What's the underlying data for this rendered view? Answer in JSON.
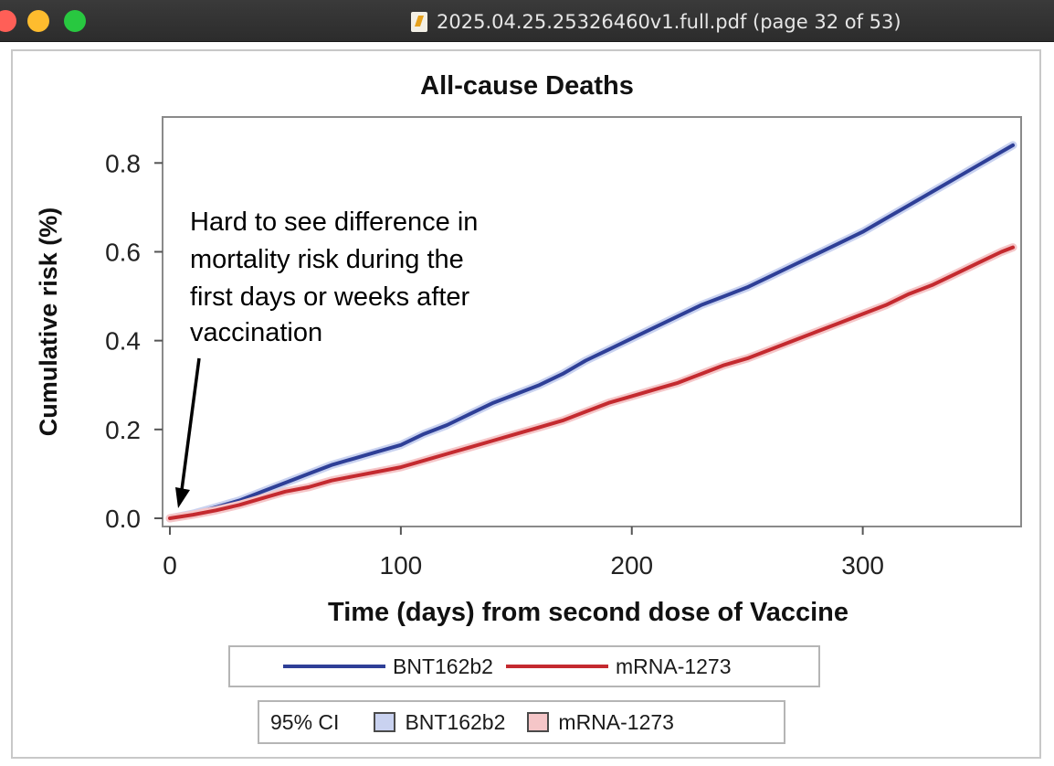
{
  "window": {
    "title": "2025.04.25.25326460v1.full.pdf (page 32 of 53)",
    "icon": "pdf-document-icon",
    "buttons": {
      "close_color": "#ff5f57",
      "minimize_color": "#febc2e",
      "maximize_color": "#28c840"
    }
  },
  "annotation": {
    "lines": [
      "Hard to see difference in",
      "mortality risk during the",
      "first days or weeks after",
      "vaccination"
    ]
  },
  "legend": {
    "series_labels": [
      "BNT162b2",
      "mRNA-1273"
    ],
    "ci_title": "95% CI",
    "ci_labels": [
      "BNT162b2",
      "mRNA-1273"
    ]
  },
  "chart_data": {
    "type": "line",
    "title": "All-cause Deaths",
    "xlabel": "Time (days) from second dose of Vaccine",
    "ylabel": "Cumulative risk (%)",
    "xlim": [
      0,
      365
    ],
    "ylim": [
      0,
      0.85
    ],
    "x_ticks": [
      0,
      100,
      200,
      300
    ],
    "x_tick_labels": [
      "0",
      "100",
      "200",
      "300"
    ],
    "y_ticks": [
      0.0,
      0.2,
      0.4,
      0.6,
      0.8
    ],
    "y_tick_labels": [
      "0.0",
      "0.2",
      "0.4",
      "0.6",
      "0.8"
    ],
    "grid": false,
    "legend_position": "bottom",
    "series": [
      {
        "name": "BNT162b2",
        "color": "#2e3f97",
        "ci_color": "#c9d2f0",
        "x": [
          0,
          10,
          20,
          30,
          40,
          50,
          60,
          70,
          80,
          90,
          100,
          110,
          120,
          130,
          140,
          150,
          160,
          170,
          180,
          190,
          200,
          210,
          220,
          230,
          240,
          250,
          260,
          270,
          280,
          290,
          300,
          310,
          320,
          330,
          340,
          350,
          360,
          365
        ],
        "y": [
          0.0,
          0.01,
          0.025,
          0.04,
          0.06,
          0.08,
          0.1,
          0.12,
          0.135,
          0.15,
          0.165,
          0.19,
          0.21,
          0.235,
          0.26,
          0.28,
          0.3,
          0.325,
          0.355,
          0.38,
          0.405,
          0.43,
          0.455,
          0.48,
          0.5,
          0.52,
          0.545,
          0.57,
          0.595,
          0.62,
          0.645,
          0.675,
          0.705,
          0.735,
          0.765,
          0.795,
          0.825,
          0.84
        ]
      },
      {
        "name": "mRNA-1273",
        "color": "#c42a2f",
        "ci_color": "#f5c6c8",
        "x": [
          0,
          10,
          20,
          30,
          40,
          50,
          60,
          70,
          80,
          90,
          100,
          110,
          120,
          130,
          140,
          150,
          160,
          170,
          180,
          190,
          200,
          210,
          220,
          230,
          240,
          250,
          260,
          270,
          280,
          290,
          300,
          310,
          320,
          330,
          340,
          350,
          360,
          365
        ],
        "y": [
          0.0,
          0.008,
          0.018,
          0.03,
          0.045,
          0.06,
          0.07,
          0.085,
          0.095,
          0.105,
          0.115,
          0.13,
          0.145,
          0.16,
          0.175,
          0.19,
          0.205,
          0.22,
          0.24,
          0.26,
          0.275,
          0.29,
          0.305,
          0.325,
          0.345,
          0.36,
          0.38,
          0.4,
          0.42,
          0.44,
          0.46,
          0.48,
          0.505,
          0.525,
          0.55,
          0.575,
          0.6,
          0.61
        ]
      }
    ]
  }
}
